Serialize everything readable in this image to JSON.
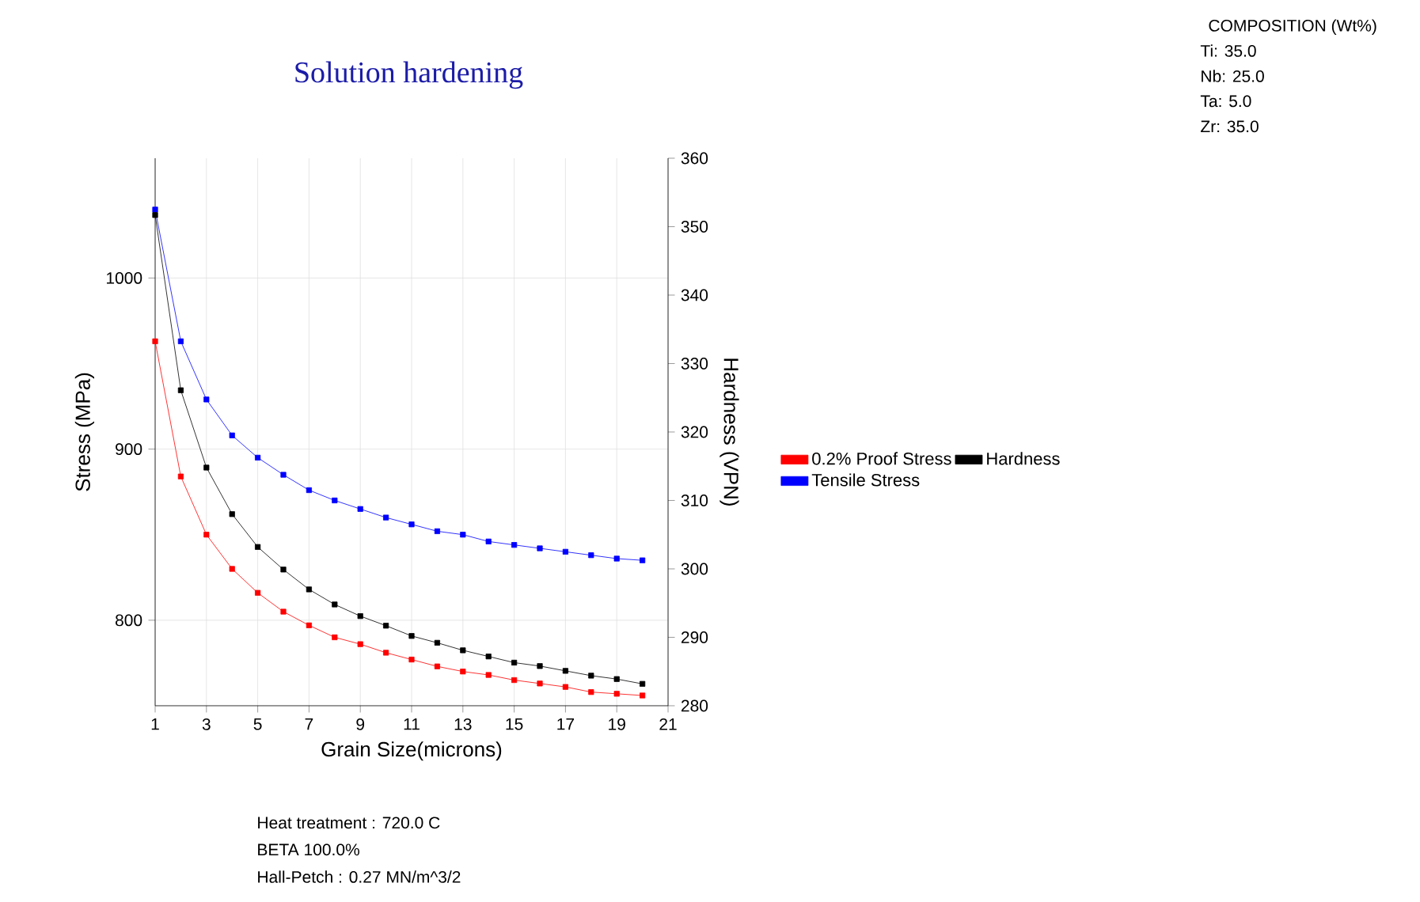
{
  "chart_data": {
    "type": "line",
    "title": "Solution hardening",
    "xlabel": "Grain Size(microns)",
    "ylabel": "Stress (MPa)",
    "y2label": "Hardness (VPN)",
    "x": [
      1,
      2,
      3,
      4,
      5,
      6,
      7,
      8,
      9,
      10,
      11,
      12,
      13,
      14,
      15,
      16,
      17,
      18,
      19,
      20
    ],
    "series": [
      {
        "name": "0.2% Proof Stress",
        "color": "#ff0000",
        "values": [
          963,
          884,
          850,
          830,
          816,
          805,
          797,
          790,
          786,
          781,
          777,
          773,
          770,
          768,
          765,
          763,
          761,
          758,
          757,
          756
        ]
      },
      {
        "name": "Hardness",
        "color": "#000000",
        "axis": "y2",
        "values": [
          351.7,
          326.1,
          314.8,
          308.0,
          303.2,
          299.9,
          297.0,
          294.8,
          293.1,
          291.7,
          290.2,
          289.2,
          288.1,
          287.2,
          286.3,
          285.8,
          285.1,
          284.4,
          283.9,
          283.2
        ]
      },
      {
        "name": "Tensile Stress",
        "color": "#0000ff",
        "values": [
          1040,
          963,
          929,
          908,
          895,
          885,
          876,
          870,
          865,
          860,
          856,
          852,
          850,
          846,
          844,
          842,
          840,
          838,
          836,
          835
        ]
      }
    ],
    "xlim": [
      1,
      21
    ],
    "xticks": [
      1,
      3,
      5,
      7,
      9,
      11,
      13,
      15,
      17,
      19,
      21
    ],
    "ylim": [
      750,
      1070
    ],
    "yticks": [
      800,
      900,
      1000
    ],
    "y2lim": [
      280,
      360
    ],
    "y2ticks": [
      280,
      290,
      300,
      310,
      320,
      330,
      340,
      350,
      360
    ],
    "grid": true,
    "legend": "right",
    "marker": "square",
    "line_style": "solid",
    "annotations": [
      "COMPOSITION (Wt%)",
      "Ti: 35.0",
      "Nb: 25.0",
      "Ta: 5.0",
      "Zr: 35.0",
      "Heat treatment : 720.0 C",
      "BETA 100.0%",
      "Hall-Petch : 0.27 MN/m^3/2"
    ]
  }
}
